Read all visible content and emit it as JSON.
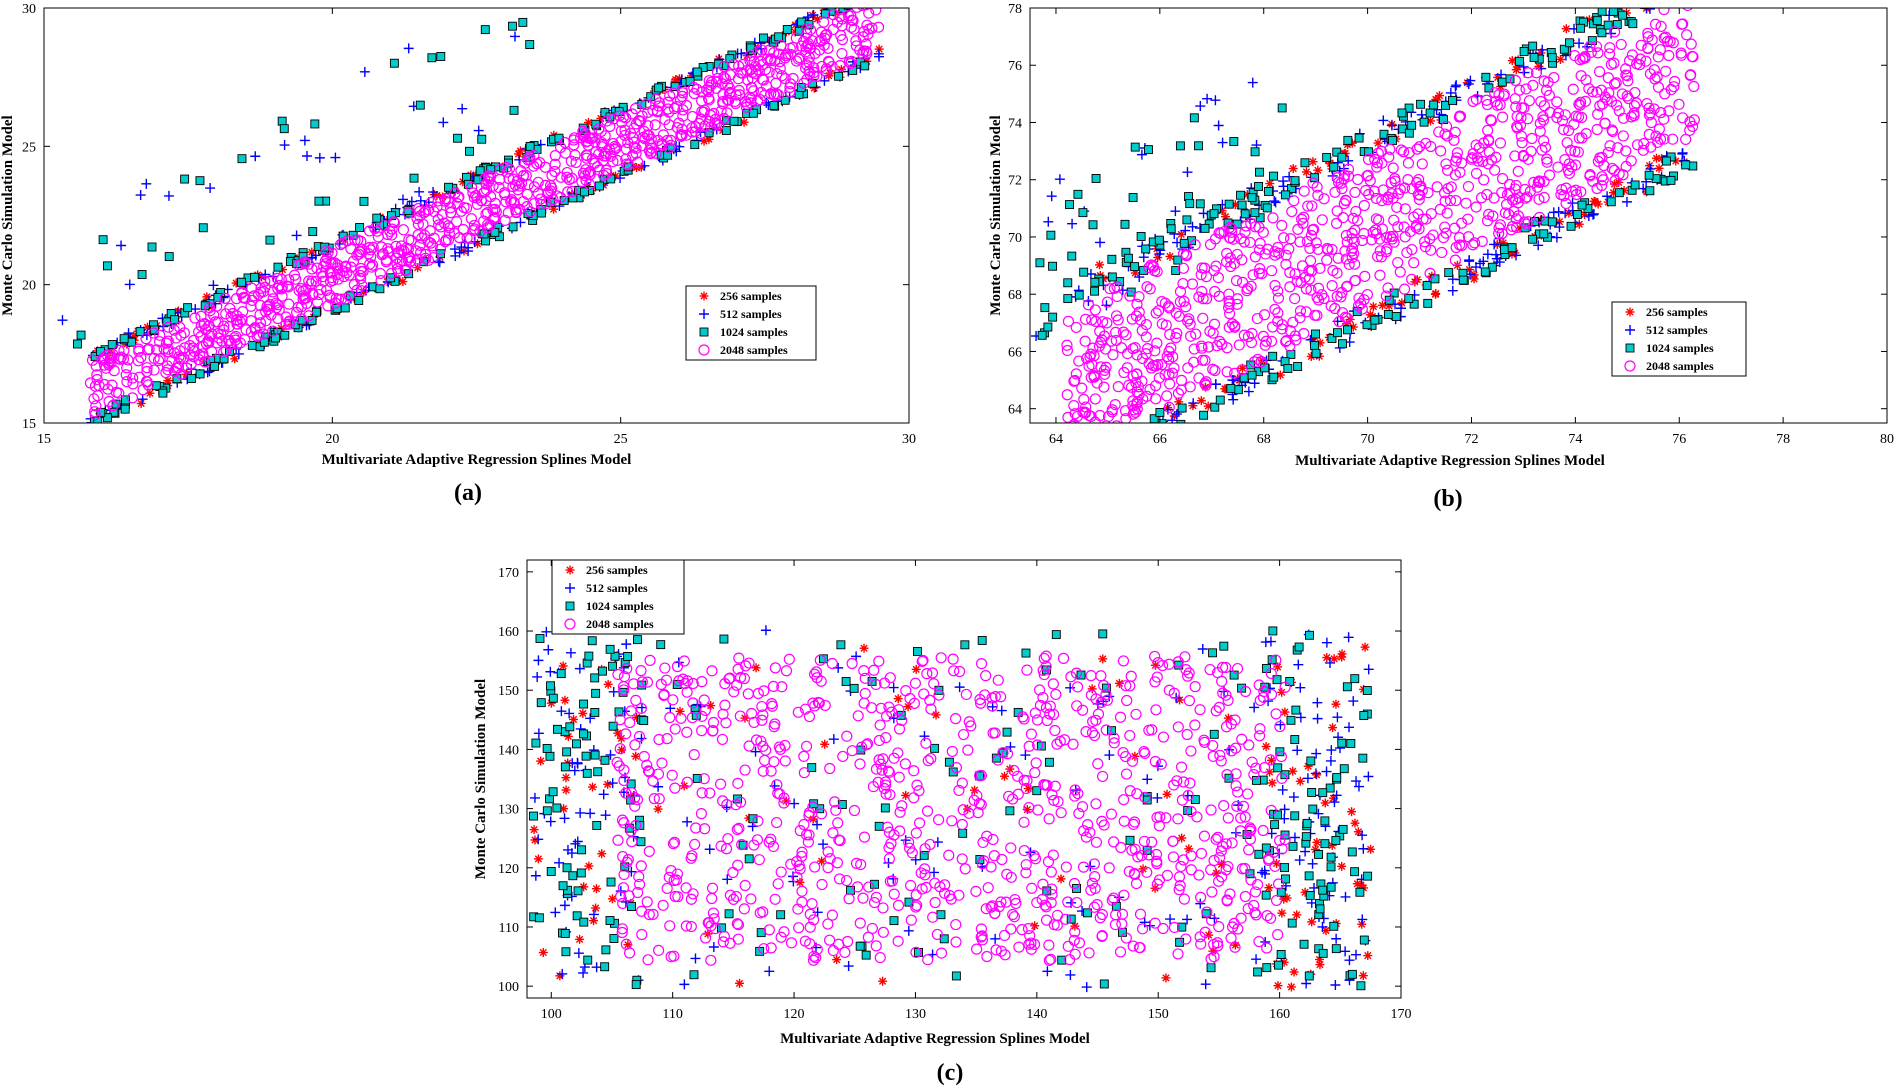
{
  "chart_data": [
    {
      "type": "scatter",
      "panel_label": "(a)",
      "xlabel": "Multivariate Adaptive Regression Splines Model",
      "ylabel": "Monte Carlo Simulation Model",
      "xlim": [
        15,
        30
      ],
      "ylim": [
        15,
        30
      ],
      "xticks": [
        15,
        20,
        25,
        30
      ],
      "yticks": [
        15,
        20,
        25,
        30
      ],
      "xtick_labels": [
        "15",
        "20",
        "25",
        "30"
      ],
      "ytick_labels": [
        "15",
        "20",
        "25",
        "30"
      ],
      "legend_position": "lower-right",
      "series_spec": {
        "x_range": [
          15.8,
          29.5
        ],
        "slope": 0.97,
        "intercept": 0.9,
        "band_half_width": 1.15,
        "outlier_region": {
          "x": [
            15.0,
            23.5
          ],
          "y_offset": [
            1.5,
            7.0
          ]
        }
      }
    },
    {
      "type": "scatter",
      "panel_label": "(b)",
      "xlabel": "Multivariate Adaptive Regression Splines Model",
      "ylabel": "Monte Carlo Simulation Model",
      "xlim": [
        63.5,
        80
      ],
      "ylim": [
        63.5,
        78
      ],
      "xticks": [
        64,
        66,
        68,
        70,
        72,
        74,
        76,
        78,
        80
      ],
      "yticks": [
        64,
        66,
        68,
        70,
        72,
        74,
        76,
        78
      ],
      "xtick_labels": [
        "64",
        "66",
        "68",
        "70",
        "72",
        "74",
        "76",
        "78",
        "80"
      ],
      "ytick_labels": [
        "64",
        "66",
        "68",
        "70",
        "72",
        "74",
        "76",
        "78"
      ],
      "legend_position": "lower-right",
      "series_spec": {
        "x_range": [
          64.2,
          76.3
        ],
        "slope": 0.92,
        "intercept": 5.8,
        "band_half_width": 3.0,
        "outlier_region": {
          "x": [
            63.6,
            68.5
          ],
          "y_offset": [
            2.0,
            7.5
          ]
        }
      }
    },
    {
      "type": "scatter",
      "panel_label": "(c)",
      "xlabel": "Multivariate Adaptive Regression Splines Model",
      "ylabel": "Monte Carlo Simulation Model",
      "xlim": [
        98,
        170
      ],
      "ylim": [
        98,
        172
      ],
      "xticks": [
        100,
        110,
        120,
        130,
        140,
        150,
        160,
        170
      ],
      "yticks": [
        100,
        110,
        120,
        130,
        140,
        150,
        160,
        170
      ],
      "xtick_labels": [
        "100",
        "110",
        "120",
        "130",
        "140",
        "150",
        "160",
        "170"
      ],
      "ytick_labels": [
        "100",
        "110",
        "120",
        "130",
        "140",
        "150",
        "160",
        "170"
      ],
      "legend_position": "top-left",
      "series_spec": {
        "cloud_center": [
          133,
          130
        ],
        "cloud_half_extent": [
          30,
          28
        ]
      }
    }
  ],
  "legend": [
    {
      "label": "256 samples",
      "marker": "asterisk",
      "color": "#ff0000",
      "count": 256
    },
    {
      "label": "512 samples",
      "marker": "plus",
      "color": "#0000ff",
      "count": 512
    },
    {
      "label": "1024 samples",
      "marker": "square",
      "color": "#00cccc",
      "count": 1024
    },
    {
      "label": "2048 samples",
      "marker": "circle",
      "color": "#ff00ff",
      "count": 2048
    }
  ]
}
